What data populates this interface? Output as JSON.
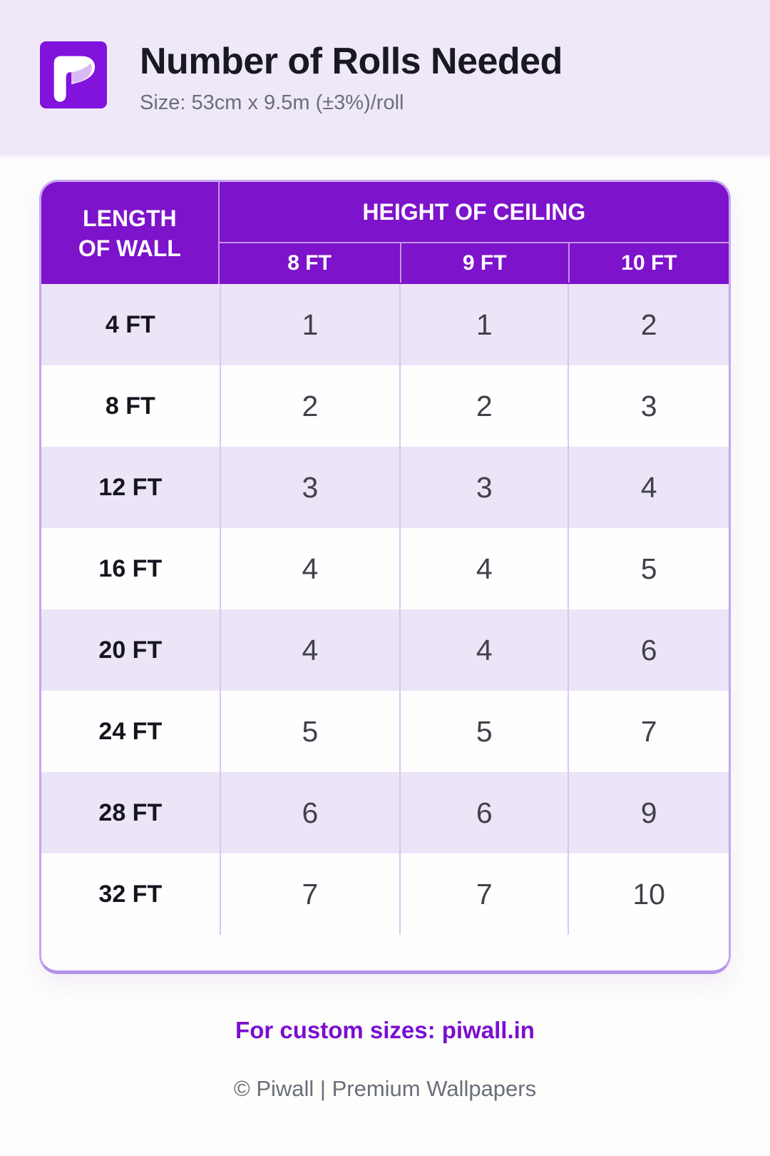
{
  "header": {
    "logo_letter": "P",
    "title": "Number of Rolls Needed",
    "subtitle": "Size: 53cm x 9.5m (±3%)/roll"
  },
  "chart_data": {
    "type": "table",
    "title": "Number of Rolls Needed",
    "subtitle": "Size: 53cm x 9.5m (±3%)/roll",
    "row_header": "LENGTH OF WALL",
    "col_group_header": "HEIGHT OF CEILING",
    "columns": [
      "8 FT",
      "9 FT",
      "10 FT"
    ],
    "rows": [
      {
        "label": "4 FT",
        "values": [
          1,
          1,
          2
        ]
      },
      {
        "label": "8 FT",
        "values": [
          2,
          2,
          3
        ]
      },
      {
        "label": "12 FT",
        "values": [
          3,
          3,
          4
        ]
      },
      {
        "label": "16 FT",
        "values": [
          4,
          4,
          5
        ]
      },
      {
        "label": "20 FT",
        "values": [
          4,
          4,
          6
        ]
      },
      {
        "label": "24 FT",
        "values": [
          5,
          5,
          7
        ]
      },
      {
        "label": "28 FT",
        "values": [
          6,
          6,
          9
        ]
      },
      {
        "label": "32 FT",
        "values": [
          7,
          7,
          10
        ]
      }
    ]
  },
  "footer": {
    "link": "For custom sizes: piwall.in",
    "copyright": "© Piwall | Premium Wallpapers"
  },
  "colors": {
    "band": "#efe8f8",
    "page_bg": "#fdfdfb",
    "header_purple": "#7d13ca",
    "logo_purple": "#8113dd",
    "row_alt": "#ece4f7",
    "row_white": "#fffefe",
    "table_border": "#c6a6ef",
    "body_sep": "#d9c6f2",
    "link_purple": "#7a0ed3",
    "muted": "#6a6f7a",
    "ink": "#191921",
    "cell_ink": "#41414b"
  }
}
